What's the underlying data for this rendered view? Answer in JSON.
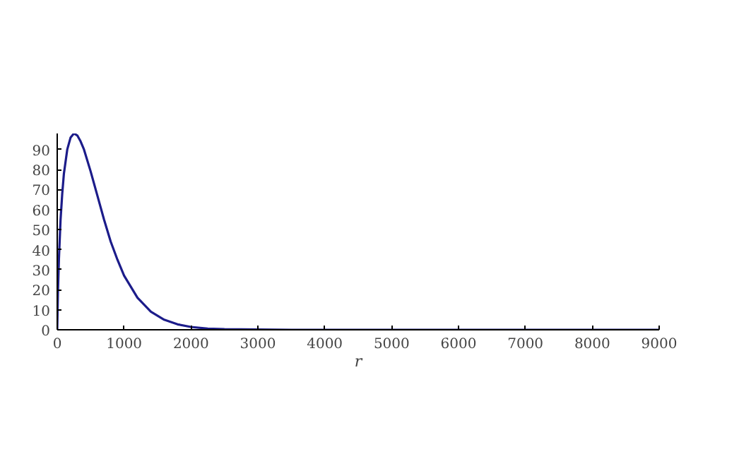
{
  "chart_data": {
    "type": "line",
    "xlabel": "r",
    "x": [
      0,
      10,
      25,
      50,
      75,
      100,
      150,
      200,
      250,
      300,
      350,
      400,
      500,
      600,
      700,
      800,
      900,
      1000,
      1200,
      1400,
      1600,
      1800,
      2000,
      2250,
      2500,
      3000,
      3500,
      4000,
      5000,
      6000,
      7000,
      8000,
      9000
    ],
    "series": [
      {
        "color": "#1c1c8a",
        "values": [
          0,
          18,
          35,
          55,
          68,
          78,
          90,
          96,
          98,
          97,
          94,
          90,
          79,
          67,
          55,
          44,
          35,
          27,
          16,
          9,
          5,
          2.7,
          1.4,
          0.6,
          0.3,
          0.1,
          0,
          0,
          0,
          0,
          0,
          0,
          0
        ]
      }
    ],
    "xlim": [
      0,
      9000
    ],
    "ylim": [
      0,
      98
    ],
    "xticks": [
      0,
      1000,
      2000,
      3000,
      4000,
      5000,
      6000,
      7000,
      8000,
      9000
    ],
    "yticks": [
      0,
      10,
      20,
      30,
      40,
      50,
      60,
      70,
      80,
      90
    ],
    "grid": false
  }
}
